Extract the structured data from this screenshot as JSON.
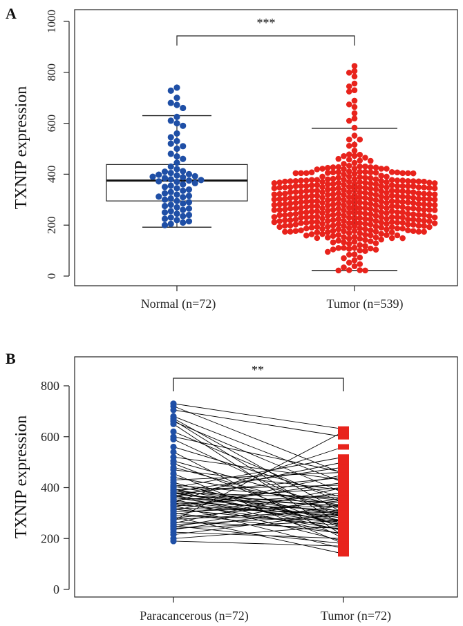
{
  "chart_data": [
    {
      "panel_label": "A",
      "type": "box-beeswarm",
      "ylabel": "TXNIP expression",
      "xlabel": "",
      "ylim": [
        0,
        1000
      ],
      "yticks": [
        0,
        200,
        400,
        600,
        800,
        1000
      ],
      "categories": [
        "Normal (n=72)",
        "Tumor (n=539)"
      ],
      "significance": "***",
      "grid": false,
      "colors": {
        "Normal": "#1f4fa6",
        "Tumor": "#e8231c"
      },
      "boxplots": [
        {
          "category": "Normal (n=72)",
          "whisker_low": 192,
          "q1": 295,
          "median": 375,
          "q3": 438,
          "whisker_high": 630
        },
        {
          "category": "Tumor (n=539)",
          "whisker_low": 22,
          "q1": 200,
          "median": 280,
          "q3": 360,
          "whisker_high": 580
        }
      ],
      "series": [
        {
          "name": "Normal",
          "category": "Normal (n=72)",
          "values": [
            740,
            728,
            700,
            680,
            672,
            660,
            625,
            610,
            600,
            590,
            560,
            545,
            530,
            520,
            510,
            500,
            480,
            470,
            460,
            445,
            430,
            420,
            412,
            410,
            405,
            400,
            398,
            395,
            392,
            390,
            388,
            385,
            380,
            377,
            375,
            372,
            370,
            365,
            360,
            355,
            350,
            345,
            340,
            335,
            330,
            325,
            320,
            315,
            312,
            310,
            305,
            300,
            295,
            290,
            285,
            280,
            275,
            270,
            265,
            260,
            255,
            250,
            245,
            240,
            235,
            230,
            225,
            220,
            215,
            210,
            205,
            200
          ]
        },
        {
          "name": "Tumor",
          "category": "Tumor (n=539)",
          "count": 539,
          "min": 22,
          "max": 825,
          "median": 280
        }
      ]
    },
    {
      "panel_label": "B",
      "type": "paired-line",
      "ylabel": "TXNIP expression",
      "xlabel": "",
      "ylim": [
        0,
        850
      ],
      "yticks": [
        0,
        200,
        400,
        600,
        800
      ],
      "categories": [
        "Paracancerous (n=72)",
        "Tumor (n=72)"
      ],
      "significance": "**",
      "grid": false,
      "colors": {
        "Paracancerous": "#1f4fa6",
        "Tumor": "#e8231c",
        "lines": "#000000"
      },
      "pairs": [
        [
          730,
          630
        ],
        [
          720,
          455
        ],
        [
          705,
          600
        ],
        [
          680,
          420
        ],
        [
          672,
          300
        ],
        [
          665,
          250
        ],
        [
          660,
          380
        ],
        [
          650,
          210
        ],
        [
          620,
          340
        ],
        [
          600,
          460
        ],
        [
          590,
          280
        ],
        [
          560,
          360
        ],
        [
          540,
          200
        ],
        [
          520,
          430
        ],
        [
          505,
          320
        ],
        [
          495,
          240
        ],
        [
          480,
          300
        ],
        [
          470,
          390
        ],
        [
          455,
          180
        ],
        [
          440,
          330
        ],
        [
          430,
          460
        ],
        [
          420,
          250
        ],
        [
          410,
          350
        ],
        [
          405,
          290
        ],
        [
          400,
          520
        ],
        [
          395,
          270
        ],
        [
          392,
          410
        ],
        [
          390,
          230
        ],
        [
          388,
          320
        ],
        [
          385,
          480
        ],
        [
          382,
          260
        ],
        [
          380,
          360
        ],
        [
          377,
          300
        ],
        [
          375,
          440
        ],
        [
          372,
          215
        ],
        [
          370,
          340
        ],
        [
          367,
          280
        ],
        [
          365,
          500
        ],
        [
          362,
          255
        ],
        [
          360,
          330
        ],
        [
          355,
          190
        ],
        [
          350,
          400
        ],
        [
          347,
          270
        ],
        [
          345,
          310
        ],
        [
          342,
          560
        ],
        [
          340,
          235
        ],
        [
          335,
          370
        ],
        [
          332,
          290
        ],
        [
          330,
          160
        ],
        [
          325,
          420
        ],
        [
          320,
          300
        ],
        [
          315,
          250
        ],
        [
          310,
          450
        ],
        [
          305,
          330
        ],
        [
          300,
          220
        ],
        [
          295,
          380
        ],
        [
          290,
          270
        ],
        [
          285,
          140
        ],
        [
          280,
          350
        ],
        [
          275,
          310
        ],
        [
          270,
          620
        ],
        [
          265,
          240
        ],
        [
          260,
          400
        ],
        [
          255,
          290
        ],
        [
          250,
          180
        ],
        [
          245,
          360
        ],
        [
          240,
          270
        ],
        [
          235,
          330
        ],
        [
          225,
          200
        ],
        [
          215,
          300
        ],
        [
          200,
          250
        ],
        [
          190,
          170
        ]
      ]
    }
  ]
}
